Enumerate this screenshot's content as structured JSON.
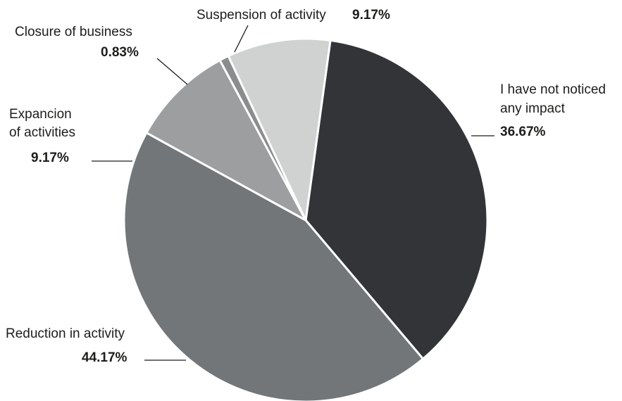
{
  "chart_data": {
    "type": "pie",
    "title": "",
    "slices": [
      {
        "label": "I have not noticed any impact",
        "label_lines": [
          "I have not noticed",
          "any impact"
        ],
        "value": 36.67,
        "value_label": "36.67%",
        "color": "#323437"
      },
      {
        "label": "Reduction in activity",
        "label_lines": [
          "Reduction in activity"
        ],
        "value": 44.17,
        "value_label": "44.17%",
        "color": "#737679"
      },
      {
        "label": "Expancion of activities",
        "label_lines": [
          "Expancion",
          "of activities"
        ],
        "value": 9.17,
        "value_label": "9.17%",
        "color": "#9c9e9f"
      },
      {
        "label": "Closure of business",
        "label_lines": [
          "Closure of business"
        ],
        "value": 0.83,
        "value_label": "0.83%",
        "color": "#8a8c8e"
      },
      {
        "label": "Suspension of activity",
        "label_lines": [
          "Suspension of activity"
        ],
        "value": 9.17,
        "value_label": "9.17%",
        "color": "#d0d1d1"
      }
    ]
  }
}
